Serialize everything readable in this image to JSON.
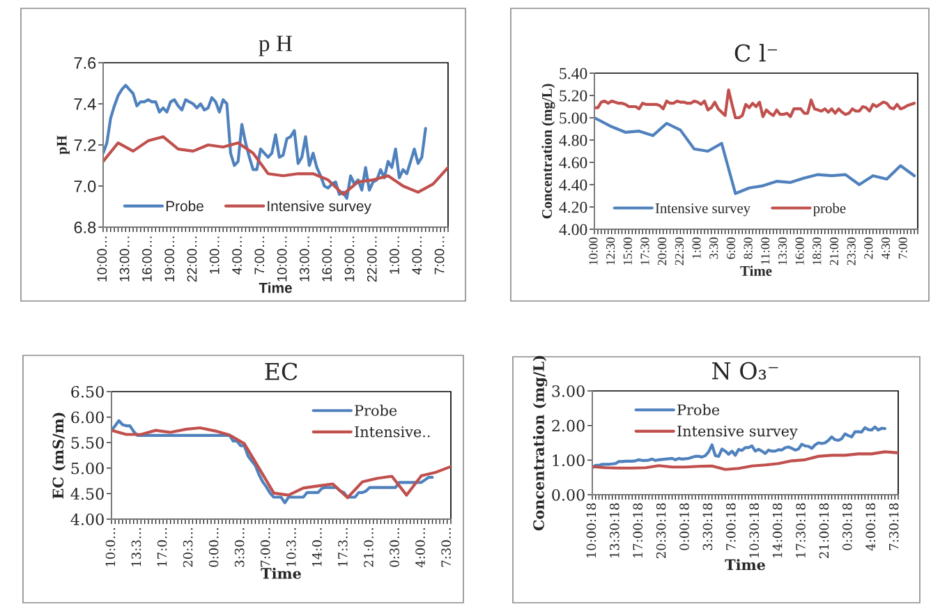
{
  "chart_data": [
    {
      "type": "line",
      "title": "p H",
      "xlabel": "Time",
      "ylabel": "pH",
      "legend": "bottom",
      "categories": [
        "10:00…",
        null,
        null,
        null,
        null,
        null,
        "13:00…",
        null,
        null,
        null,
        null,
        null,
        "16:00…",
        null,
        null,
        null,
        null,
        null,
        "19:00…",
        null,
        null,
        null,
        null,
        null,
        "22:00…",
        null,
        null,
        null,
        null,
        null,
        "1:00…",
        null,
        null,
        null,
        null,
        null,
        "4:00…",
        null,
        null,
        null,
        null,
        null,
        "7:00…",
        null,
        null,
        null,
        null,
        null,
        "10:00…",
        null,
        null,
        null,
        null,
        null,
        "13:00…",
        null,
        null,
        null,
        null,
        null,
        "16:00…",
        null,
        null,
        null,
        null,
        null,
        "19:00…",
        null,
        null,
        null,
        null,
        null,
        "22:00…",
        null,
        null,
        null,
        null,
        null,
        "1:00…",
        null,
        null,
        null,
        null,
        null,
        "4:00…",
        null,
        null,
        null,
        null,
        null,
        "7:00…",
        null,
        null
      ],
      "ylim": [
        6.8,
        7.6
      ],
      "yticks": [
        6.8,
        {
          "value": 7.0,
          "label": "7.0"
        },
        7.2,
        7.4,
        7.6
      ],
      "series": [
        {
          "name": "Probe",
          "color": "#4f81bd",
          "values": [
            7.16,
            7.21,
            7.33,
            7.39,
            7.44,
            7.47,
            7.49,
            7.47,
            7.45,
            7.39,
            7.41,
            7.41,
            7.42,
            7.41,
            7.41,
            7.36,
            7.38,
            7.36,
            7.41,
            7.42,
            7.39,
            7.37,
            7.42,
            7.41,
            7.4,
            7.38,
            7.4,
            7.37,
            7.38,
            7.43,
            7.41,
            7.36,
            7.42,
            7.4,
            7.16,
            7.1,
            7.12,
            7.3,
            7.21,
            7.14,
            7.08,
            7.08,
            7.18,
            7.16,
            7.14,
            7.16,
            7.25,
            7.14,
            7.15,
            7.23,
            7.24,
            7.27,
            7.11,
            7.14,
            7.24,
            7.1,
            7.16,
            7.09,
            7.05,
            7.0,
            6.99,
            7.01,
            7.02,
            6.96,
            6.97,
            6.94,
            7.05,
            7.01,
            7.03,
            6.98,
            7.09,
            6.98,
            7.02,
            7.03,
            7.08,
            7.04,
            7.12,
            7.09,
            7.18,
            7.04,
            7.08,
            7.06,
            7.12,
            7.18,
            7.11,
            7.14,
            7.28,
            null,
            null,
            null,
            null,
            null,
            null
          ]
        },
        {
          "name": "Intensive survey",
          "color": "#c0504d",
          "values": [
            7.12,
            null,
            null,
            null,
            7.21,
            null,
            null,
            null,
            7.17,
            null,
            null,
            null,
            7.22,
            null,
            null,
            null,
            7.24,
            null,
            null,
            null,
            7.18,
            null,
            null,
            null,
            7.17,
            null,
            null,
            null,
            7.2,
            null,
            null,
            null,
            7.19,
            null,
            null,
            null,
            7.21,
            null,
            null,
            null,
            7.16,
            null,
            null,
            null,
            7.06,
            null,
            null,
            null,
            7.05,
            null,
            null,
            null,
            7.06,
            null,
            null,
            null,
            7.06,
            null,
            null,
            null,
            7.03,
            null,
            null,
            null,
            6.96,
            null,
            null,
            null,
            7.02,
            null,
            null,
            null,
            7.03,
            null,
            null,
            null,
            7.05,
            null,
            null,
            null,
            7.0,
            null,
            null,
            null,
            6.97,
            null,
            null,
            null,
            7.01,
            null,
            null,
            null,
            7.09
          ]
        }
      ]
    },
    {
      "type": "line",
      "title": "C l⁻",
      "xlabel": "Time",
      "ylabel": "Concentration (mg/L)",
      "legend": "bottom",
      "categories": [
        "10:00",
        null,
        null,
        null,
        null,
        "12:30",
        null,
        null,
        null,
        null,
        "15:00",
        null,
        null,
        null,
        null,
        "17:30",
        null,
        null,
        null,
        null,
        "20:00",
        null,
        null,
        null,
        null,
        "22:30",
        null,
        null,
        null,
        null,
        "1:00",
        null,
        null,
        null,
        null,
        "3:30",
        null,
        null,
        null,
        null,
        "6:00",
        null,
        null,
        null,
        null,
        "8:30",
        null,
        null,
        null,
        null,
        "11:00",
        null,
        null,
        null,
        null,
        "13:30",
        null,
        null,
        null,
        null,
        "16:00",
        null,
        null,
        null,
        null,
        "18:30",
        null,
        null,
        null,
        null,
        "21:00",
        null,
        null,
        null,
        null,
        "23:30",
        null,
        null,
        null,
        null,
        "2:00",
        null,
        null,
        null,
        null,
        "4:30",
        null,
        null,
        null,
        null,
        "7:00",
        null,
        null,
        null,
        null
      ],
      "ylim": [
        4.0,
        5.4
      ],
      "yticks": [
        {
          "value": 4.0,
          "label": "4.00"
        },
        {
          "value": 4.2,
          "label": "4.20"
        },
        {
          "value": 4.4,
          "label": "4.40"
        },
        {
          "value": 4.6,
          "label": "4.60"
        },
        {
          "value": 4.8,
          "label": "4.80"
        },
        {
          "value": 5.0,
          "label": "5.00"
        },
        {
          "value": 5.2,
          "label": "5.20"
        },
        {
          "value": 5.4,
          "label": "5.40"
        }
      ],
      "series": [
        {
          "name": "Intensive survey",
          "color": "#4f81bd",
          "values": [
            5.0,
            null,
            null,
            null,
            null,
            4.92,
            null,
            null,
            null,
            4.87,
            null,
            null,
            null,
            4.88,
            null,
            null,
            null,
            4.84,
            null,
            null,
            null,
            4.95,
            null,
            null,
            null,
            4.89,
            null,
            null,
            null,
            4.72,
            null,
            null,
            null,
            4.7,
            null,
            null,
            null,
            4.77,
            null,
            null,
            null,
            4.32,
            null,
            null,
            null,
            4.37,
            null,
            null,
            null,
            4.39,
            null,
            null,
            null,
            4.43,
            null,
            null,
            null,
            4.42,
            null,
            null,
            null,
            4.46,
            null,
            null,
            null,
            4.49,
            null,
            null,
            null,
            4.48,
            null,
            null,
            null,
            4.49,
            null,
            null,
            null,
            4.4,
            null,
            null,
            null,
            4.48,
            null,
            null,
            null,
            4.45,
            null,
            null,
            null,
            4.57,
            null,
            null,
            null,
            4.48,
            null
          ]
        },
        {
          "name": "probe",
          "color": "#c0504d",
          "values": [
            5.09,
            5.09,
            5.14,
            5.15,
            5.13,
            5.15,
            5.14,
            5.13,
            5.13,
            5.12,
            5.1,
            5.1,
            5.1,
            5.08,
            5.13,
            5.12,
            5.12,
            5.12,
            5.12,
            5.11,
            5.08,
            5.15,
            5.13,
            5.13,
            5.15,
            5.14,
            5.14,
            5.13,
            5.13,
            5.15,
            5.14,
            5.12,
            5.15,
            5.07,
            5.09,
            5.14,
            5.08,
            5.05,
            5.02,
            5.25,
            5.12,
            5.0,
            5.0,
            5.02,
            5.12,
            5.09,
            5.13,
            5.1,
            5.14,
            5.01,
            5.07,
            5.04,
            5.02,
            5.07,
            5.03,
            5.03,
            5.04,
            5.01,
            5.08,
            5.08,
            5.08,
            5.04,
            5.04,
            5.16,
            5.08,
            5.07,
            5.06,
            5.08,
            5.05,
            5.08,
            5.04,
            5.08,
            5.05,
            5.03,
            5.04,
            5.08,
            5.06,
            5.06,
            5.1,
            5.09,
            5.06,
            5.12,
            5.1,
            5.12,
            5.14,
            5.13,
            5.09,
            5.08,
            5.12,
            5.08,
            5.09,
            5.11,
            5.12,
            5.13,
            null
          ]
        }
      ]
    },
    {
      "type": "line",
      "title": "EC",
      "xlabel": "Time",
      "ylabel": "EC (mS/m)",
      "legend": "top right",
      "categories": [
        "10:0…",
        null,
        null,
        null,
        null,
        null,
        null,
        "13:3…",
        null,
        null,
        null,
        null,
        null,
        null,
        "17:0…",
        null,
        null,
        null,
        null,
        null,
        null,
        "20:3…",
        null,
        null,
        null,
        null,
        null,
        null,
        "0:00…",
        null,
        null,
        null,
        null,
        null,
        null,
        "3:30…",
        null,
        null,
        null,
        null,
        null,
        null,
        "7:00…",
        null,
        null,
        null,
        null,
        null,
        null,
        "10:3…",
        null,
        null,
        null,
        null,
        null,
        null,
        "14:0…",
        null,
        null,
        null,
        null,
        null,
        null,
        "17:3…",
        null,
        null,
        null,
        null,
        null,
        null,
        "21:0…",
        null,
        null,
        null,
        null,
        null,
        null,
        "0:30…",
        null,
        null,
        null,
        null,
        null,
        null,
        "4:00…",
        null,
        null,
        null,
        null,
        null,
        null,
        "7:30…",
        null
      ],
      "ylim": [
        4.0,
        6.5
      ],
      "yticks": [
        {
          "value": 4.0,
          "label": "4.00"
        },
        {
          "value": 4.5,
          "label": "4.50"
        },
        {
          "value": 5.0,
          "label": "5.00"
        },
        {
          "value": 5.5,
          "label": "5.50"
        },
        {
          "value": 6.0,
          "label": "6.00"
        },
        {
          "value": 6.5,
          "label": "6.50"
        }
      ],
      "series": [
        {
          "name": "Probe",
          "color": "#4f81bd",
          "values": [
            5.74,
            5.83,
            5.93,
            5.85,
            5.83,
            5.83,
            5.72,
            5.64,
            5.64,
            5.64,
            5.64,
            5.64,
            5.64,
            5.64,
            5.64,
            5.64,
            5.64,
            5.64,
            5.64,
            5.64,
            5.64,
            5.64,
            5.64,
            5.64,
            5.64,
            5.64,
            5.64,
            5.64,
            5.64,
            5.64,
            5.64,
            5.64,
            5.64,
            5.53,
            5.53,
            5.44,
            5.44,
            5.24,
            5.14,
            5.05,
            4.87,
            4.73,
            4.63,
            4.51,
            4.43,
            4.43,
            4.43,
            4.32,
            4.43,
            4.43,
            4.43,
            4.43,
            4.43,
            4.52,
            4.52,
            4.52,
            4.52,
            4.6,
            4.62,
            4.62,
            4.62,
            4.62,
            4.55,
            4.52,
            4.43,
            4.43,
            4.43,
            4.52,
            4.52,
            4.55,
            4.62,
            4.62,
            4.62,
            4.62,
            4.62,
            4.62,
            4.62,
            4.62,
            4.72,
            4.72,
            4.72,
            4.72,
            4.72,
            4.72,
            4.72,
            4.77,
            4.82,
            4.82,
            null,
            null,
            null,
            null,
            null
          ]
        },
        {
          "name": "Intensive..",
          "color": "#c0504d",
          "values": [
            5.74,
            null,
            null,
            null,
            5.66,
            null,
            null,
            null,
            5.66,
            null,
            null,
            null,
            5.74,
            null,
            null,
            null,
            5.7,
            null,
            null,
            null,
            5.76,
            null,
            null,
            null,
            5.79,
            null,
            null,
            null,
            5.73,
            null,
            null,
            null,
            5.65,
            null,
            null,
            null,
            5.48,
            null,
            null,
            null,
            5.0,
            null,
            null,
            null,
            4.51,
            null,
            null,
            null,
            4.47,
            null,
            null,
            null,
            4.61,
            null,
            null,
            null,
            4.65,
            null,
            null,
            null,
            4.69,
            null,
            null,
            null,
            4.42,
            null,
            null,
            null,
            4.73,
            null,
            null,
            null,
            4.8,
            null,
            null,
            null,
            4.84,
            null,
            null,
            null,
            4.47,
            null,
            null,
            null,
            4.85,
            null,
            null,
            null,
            4.92,
            null,
            null,
            null,
            5.03
          ]
        }
      ]
    },
    {
      "type": "line",
      "title": "N O₃⁻",
      "xlabel": "Time",
      "ylabel": "Concentration (mg/L)",
      "legend": "top left",
      "categories": [
        "10:00:18",
        null,
        null,
        null,
        null,
        null,
        null,
        "13:30:18",
        null,
        null,
        null,
        null,
        null,
        null,
        "17:00:18",
        null,
        null,
        null,
        null,
        null,
        null,
        "20:30:18",
        null,
        null,
        null,
        null,
        null,
        null,
        "0:00:18",
        null,
        null,
        null,
        null,
        null,
        null,
        "3:30:18",
        null,
        null,
        null,
        null,
        null,
        null,
        "7:00:18",
        null,
        null,
        null,
        null,
        null,
        null,
        "10:30:18",
        null,
        null,
        null,
        null,
        null,
        null,
        "14:00:18",
        null,
        null,
        null,
        null,
        null,
        null,
        "17:30:18",
        null,
        null,
        null,
        null,
        null,
        null,
        "21:00:18",
        null,
        null,
        null,
        null,
        null,
        null,
        "0:30:18",
        null,
        null,
        null,
        null,
        null,
        null,
        "4:00:18",
        null,
        null,
        null,
        null,
        null,
        null,
        "7:30:18",
        null
      ],
      "ylim": [
        0.0,
        3.0
      ],
      "yticks": [
        {
          "value": 0.0,
          "label": "0.00"
        },
        {
          "value": 1.0,
          "label": "1.00"
        },
        {
          "value": 2.0,
          "label": "2.00"
        },
        {
          "value": 3.0,
          "label": "3.00"
        }
      ],
      "series": [
        {
          "name": "Probe",
          "color": "#4f81bd",
          "values": [
            0.78,
            0.85,
            0.85,
            0.88,
            0.88,
            0.88,
            0.89,
            0.9,
            0.96,
            0.96,
            0.97,
            0.97,
            0.97,
            0.98,
            1.01,
            0.99,
            0.99,
            1.0,
            1.03,
            0.99,
            1.01,
            1.02,
            1.03,
            1.04,
            1.05,
            1.01,
            1.05,
            1.03,
            1.04,
            1.05,
            1.08,
            1.11,
            1.11,
            1.09,
            1.13,
            1.24,
            1.44,
            1.13,
            1.11,
            1.32,
            1.26,
            1.17,
            1.26,
            1.14,
            1.31,
            1.28,
            1.36,
            1.36,
            1.41,
            1.26,
            1.31,
            1.26,
            1.19,
            1.29,
            1.26,
            1.26,
            1.3,
            1.29,
            1.36,
            1.38,
            1.34,
            1.29,
            1.32,
            1.46,
            1.41,
            1.4,
            1.34,
            1.44,
            1.5,
            1.48,
            1.5,
            1.57,
            1.67,
            1.59,
            1.57,
            1.62,
            1.76,
            1.71,
            1.67,
            1.82,
            1.82,
            1.81,
            1.94,
            1.88,
            1.87,
            1.96,
            1.87,
            1.92,
            1.91,
            null,
            null,
            null,
            null
          ]
        },
        {
          "name": "Intensive survey",
          "color": "#c0504d",
          "values": [
            0.81,
            null,
            null,
            null,
            0.78,
            null,
            null,
            null,
            0.77,
            null,
            null,
            null,
            0.77,
            null,
            null,
            null,
            0.78,
            null,
            null,
            null,
            0.84,
            null,
            null,
            null,
            0.8,
            null,
            null,
            null,
            0.8,
            null,
            null,
            null,
            0.82,
            null,
            null,
            null,
            0.83,
            null,
            null,
            null,
            0.73,
            null,
            null,
            null,
            0.76,
            null,
            null,
            null,
            0.83,
            null,
            null,
            null,
            0.86,
            null,
            null,
            null,
            0.9,
            null,
            null,
            null,
            0.98,
            null,
            null,
            null,
            1.01,
            null,
            null,
            null,
            1.11,
            null,
            null,
            null,
            1.14,
            null,
            null,
            null,
            1.14,
            null,
            null,
            null,
            1.18,
            null,
            null,
            null,
            1.18,
            null,
            null,
            null,
            1.24,
            null,
            null,
            null,
            1.21
          ]
        }
      ]
    }
  ]
}
